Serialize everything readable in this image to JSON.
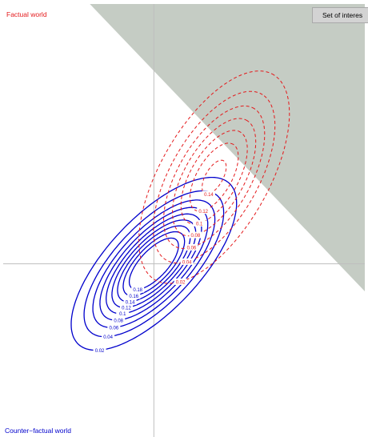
{
  "chart_data": {
    "type": "contour",
    "labels": {
      "factual_world": "Factual world",
      "counterfactual_world": "Counter−factual world",
      "region": "Set of interes"
    },
    "colors": {
      "factual": "#e41a1c",
      "counterfactual": "#0000cc",
      "region": "#c5ccc4",
      "axes": "#bebebe"
    },
    "axes": {
      "xlim": [
        -4,
        5.6
      ],
      "ylim": [
        -4.4,
        6.6
      ]
    },
    "counterfactual": {
      "mean": [
        0,
        0
      ],
      "sd": [
        1,
        1
      ],
      "rho": 0.7,
      "style": "solid",
      "levels": [
        0.02,
        0.04,
        0.06,
        0.08,
        0.1,
        0.12,
        0.14,
        0.16,
        0.18
      ],
      "level_labels": [
        "0.02",
        "0.04",
        "0.06",
        "0.08",
        "0.1",
        "0.12",
        "0.14",
        "0.16",
        "0.18"
      ]
    },
    "factual": {
      "mean": [
        1.6,
        2.2
      ],
      "sd": [
        1,
        1.35
      ],
      "rho": 0.6,
      "style": "dashed",
      "levels": [
        0.02,
        0.04,
        0.06,
        0.08,
        0.1,
        0.12,
        0.14
      ],
      "level_labels": [
        "0.02",
        "0.04",
        "0.06",
        "0.08",
        "0.1",
        "0.12",
        "0.14"
      ]
    },
    "region": {
      "type": "half-plane",
      "boundary": "x + y > 4.9"
    }
  }
}
